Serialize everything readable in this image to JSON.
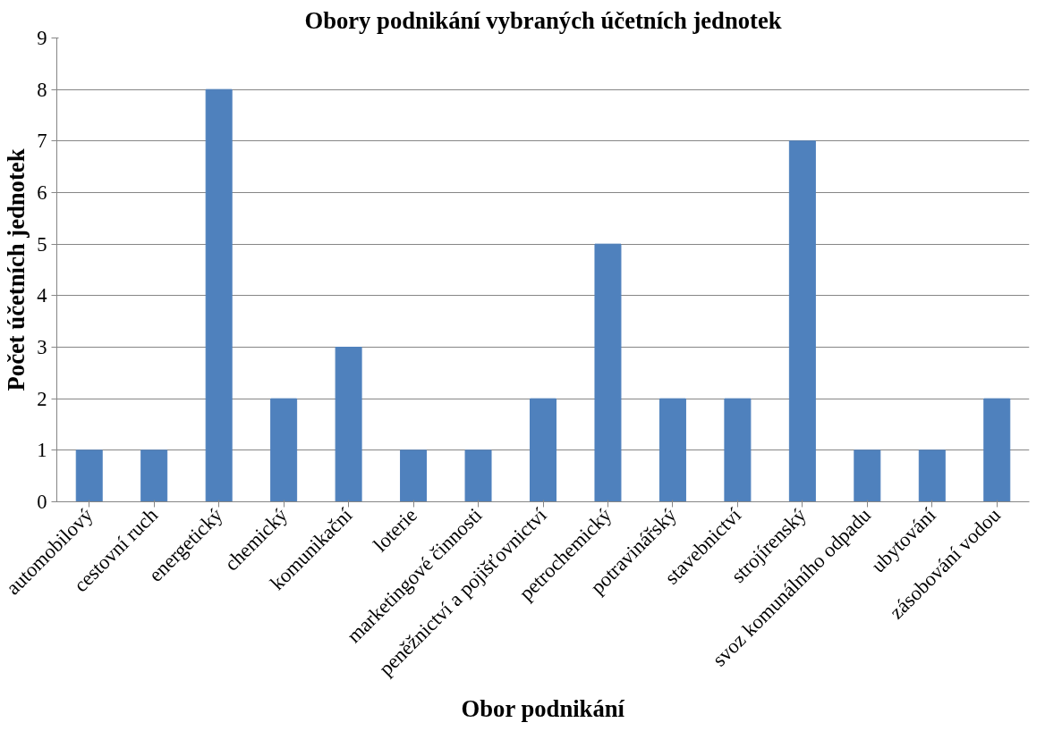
{
  "chart_data": {
    "type": "bar",
    "title": "Obory podnikání vybraných účetních jednotek",
    "xlabel": "Obor podnikání",
    "ylabel": "Počet účetních jednotek",
    "categories": [
      "automobilový",
      "cestovní ruch",
      "energetický",
      "chemický",
      "komunikační",
      "loterie",
      "marketingové činnosti",
      "peněžnictví a pojišťovnictví",
      "petrochemický",
      "potravinářský",
      "stavebnictví",
      "strojírenský",
      "svoz komunálního odpadu",
      "ubytování",
      "zásobování vodou"
    ],
    "values": [
      1,
      1,
      8,
      2,
      3,
      1,
      1,
      2,
      5,
      2,
      2,
      7,
      1,
      1,
      2
    ],
    "color": "#4f81bd",
    "ylim": [
      0,
      9
    ],
    "yticks": [
      0,
      1,
      2,
      3,
      4,
      5,
      6,
      7,
      8,
      9
    ],
    "grid": "y"
  }
}
